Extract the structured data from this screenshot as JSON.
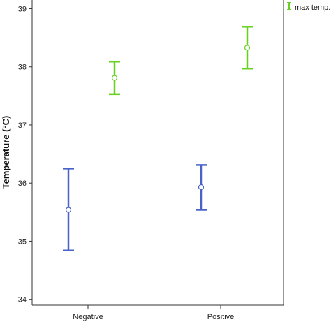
{
  "chart_data": {
    "type": "errorbar",
    "categories": [
      "Negative",
      "Positive"
    ],
    "ylabel": "Temperature (°C)",
    "xlabel": "",
    "ylim": [
      33.9,
      39.15
    ],
    "yticks": [
      34,
      35,
      36,
      37,
      38,
      39
    ],
    "ytick_labels": [
      "34",
      "35",
      "36",
      "37",
      "38",
      "39"
    ],
    "legend": {
      "placement": "top-right"
    },
    "series": [
      {
        "name": "",
        "color": "#4a63c8",
        "mean": [
          35.54,
          35.93
        ],
        "lower": [
          34.84,
          35.54
        ],
        "upper": [
          36.25,
          36.31
        ]
      },
      {
        "name": "max temp.",
        "color": "#66d21e",
        "mean": [
          37.81,
          38.33
        ],
        "lower": [
          37.53,
          37.97
        ],
        "upper": [
          38.09,
          38.69
        ]
      }
    ]
  }
}
